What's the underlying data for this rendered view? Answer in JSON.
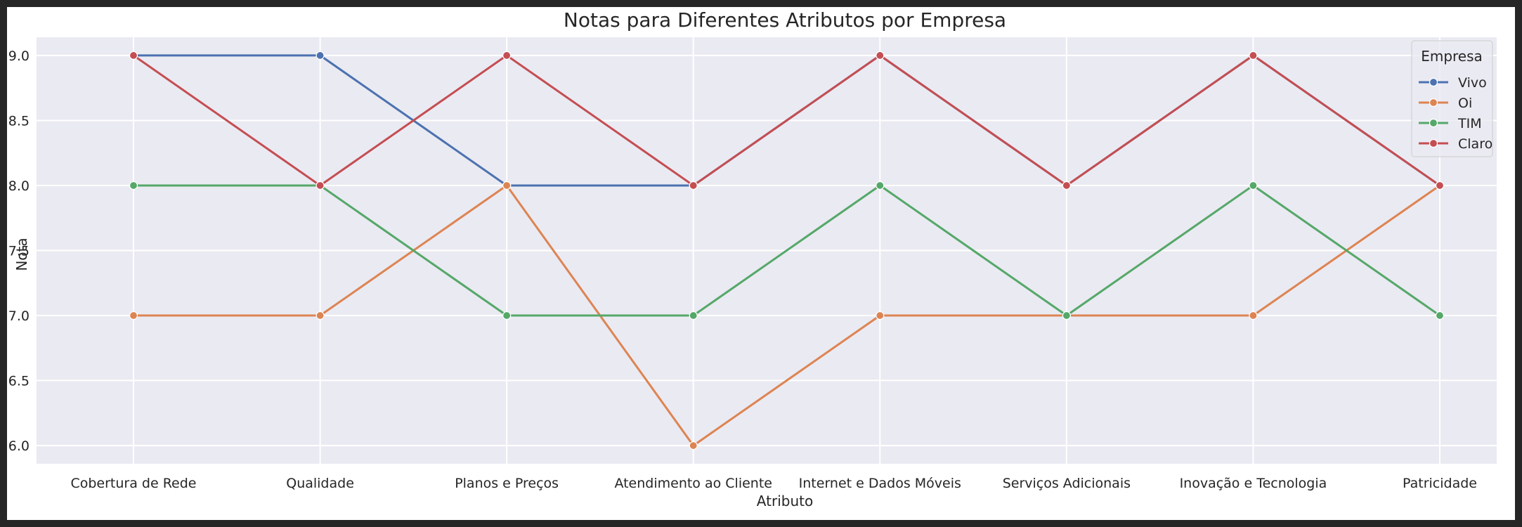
{
  "chart_data": {
    "type": "line",
    "title": "Notas para Diferentes Atributos por Empresa",
    "xlabel": "Atributo",
    "ylabel": "Nota",
    "categories": [
      "Cobertura de Rede",
      "Qualidade",
      "Planos e Preços",
      "Atendimento ao Cliente",
      "Internet e Dados Móveis",
      "Serviços Adicionais",
      "Inovação e Tecnologia",
      "Patricidade"
    ],
    "ylim": [
      5.86,
      9.14
    ],
    "yticks": [
      "6.0",
      "6.5",
      "7.0",
      "7.5",
      "8.0",
      "8.5",
      "9.0"
    ],
    "grid": true,
    "legend": {
      "title": "Empresa",
      "placement": "top-right"
    },
    "series": [
      {
        "name": "Vivo",
        "color": "#4c72b0",
        "values": [
          9,
          9,
          8,
          8,
          9,
          8,
          9,
          8
        ]
      },
      {
        "name": "Oi",
        "color": "#dd8452",
        "values": [
          7,
          7,
          8,
          6,
          7,
          7,
          7,
          8
        ]
      },
      {
        "name": "TIM",
        "color": "#55a868",
        "values": [
          8,
          8,
          7,
          7,
          8,
          7,
          8,
          7
        ]
      },
      {
        "name": "Claro",
        "color": "#c44e52",
        "values": [
          9,
          8,
          9,
          8,
          9,
          8,
          9,
          8
        ]
      }
    ]
  }
}
